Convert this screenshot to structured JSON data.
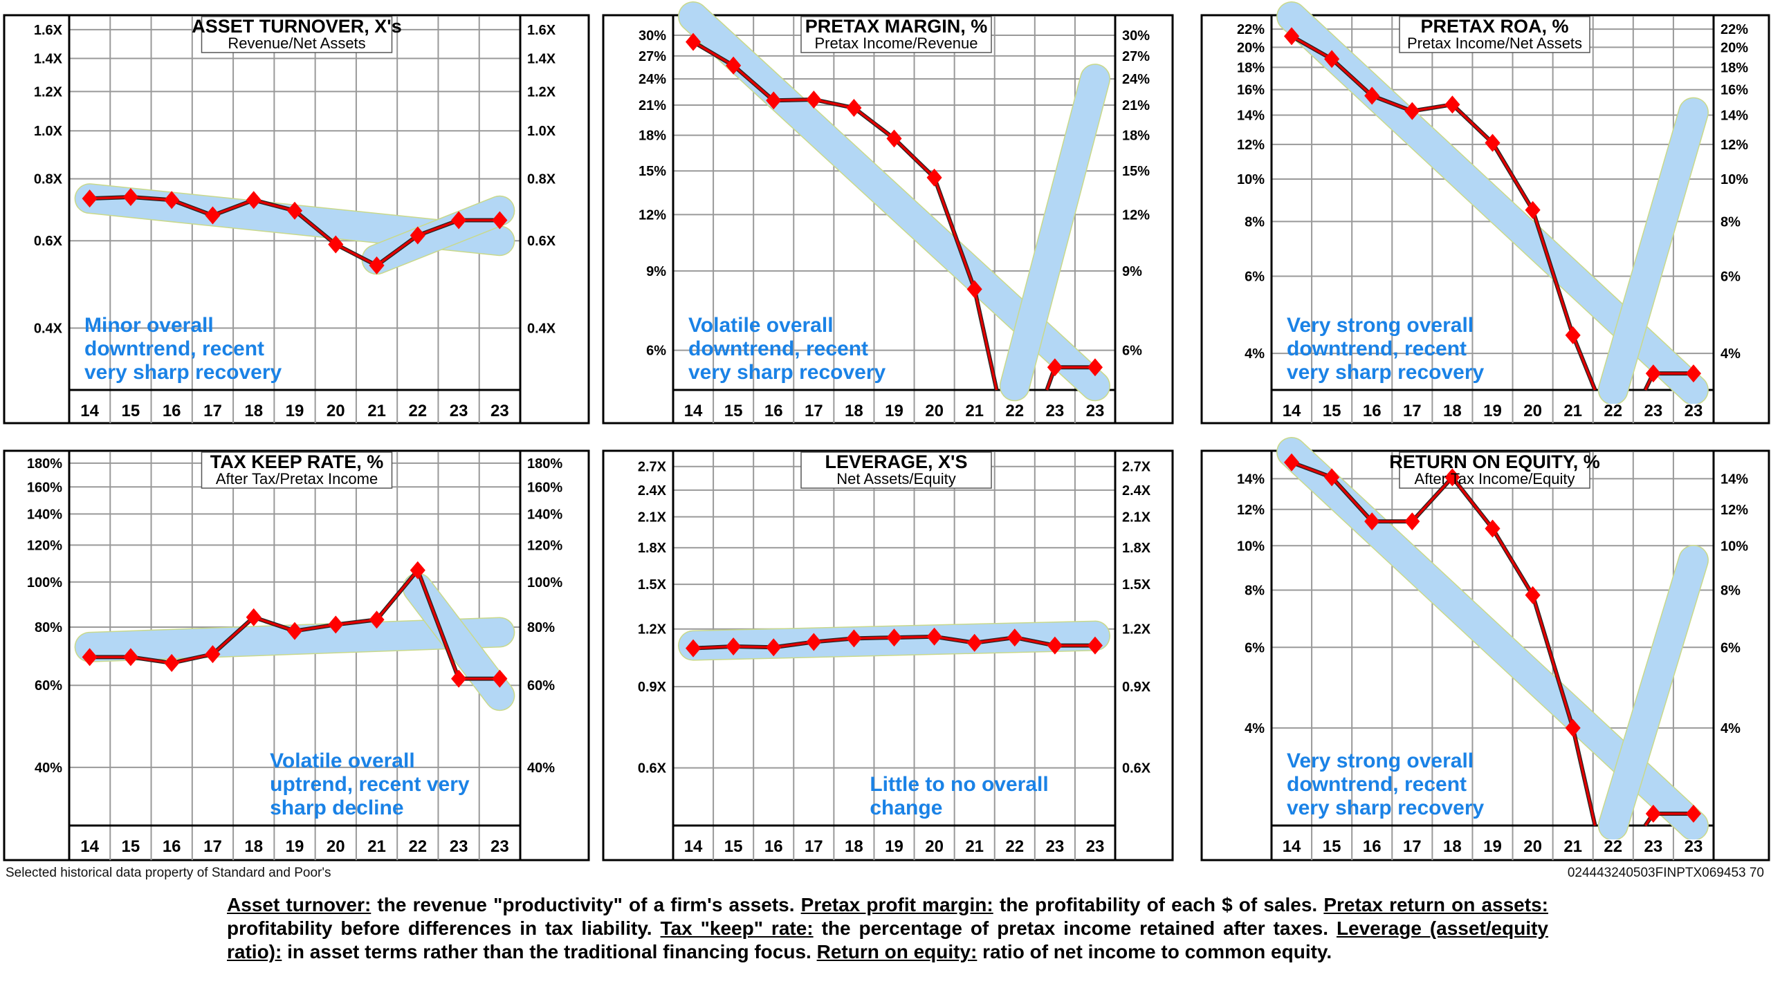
{
  "credit": "Selected historical data property of Standard and Poor's",
  "code": "024443240503FINPTX069453  70",
  "footer": [
    {
      "term": "Asset turnover:",
      "text": " the revenue \"productivity\" of a firm's assets. "
    },
    {
      "term": "Pretax profit margin:",
      "text": " the profitability of each $ of sales. "
    },
    {
      "term": "Pretax return on assets:",
      "text": " profitability before differences in tax liability. "
    },
    {
      "term": "Tax \"keep\" rate:",
      "text": " the percentage of pretax income retained after taxes. "
    },
    {
      "term": "Leverage (asset/equity ratio):",
      "text": " in asset terms rather than the traditional financing focus. "
    },
    {
      "term": "Return on equity:",
      "text": " ratio of net income to common equity."
    }
  ],
  "colors": {
    "line": "#e00000",
    "marker": "#ff0000",
    "trend": "#b3d7f5",
    "note": "#1a82e6",
    "grid": "#999999"
  },
  "chart_data": [
    {
      "type": "line",
      "title": "ASSET TURNOVER, X's",
      "subtitle": "Revenue/Net Assets",
      "scale": "log",
      "categories": [
        "14",
        "15",
        "16",
        "17",
        "18",
        "19",
        "20",
        "21",
        "22",
        "23",
        "23"
      ],
      "values": [
        0.73,
        0.735,
        0.725,
        0.675,
        0.725,
        0.69,
        0.59,
        0.535,
        0.615,
        0.66,
        0.66
      ],
      "yticks": [
        0.4,
        0.6,
        0.8,
        1.0,
        1.2,
        1.4,
        1.6
      ],
      "tick_labels": [
        "0.4X",
        "0.6X",
        "0.8X",
        "1.0X",
        "1.2X",
        "1.4X",
        "1.6X"
      ],
      "ylim": [
        0.3,
        1.7
      ],
      "trends": [
        {
          "from": [
            0,
            0.73
          ],
          "to": [
            10,
            0.6
          ]
        },
        {
          "from": [
            7,
            0.55
          ],
          "to": [
            10,
            0.69
          ]
        }
      ],
      "note": [
        "Minor overall",
        "downtrend, recent",
        "very sharp recovery"
      ],
      "note_pos": "bottom-left"
    },
    {
      "type": "line",
      "title": "PRETAX MARGIN, %",
      "subtitle": "Pretax Income/Revenue",
      "scale": "log",
      "categories": [
        "14",
        "15",
        "16",
        "17",
        "18",
        "19",
        "20",
        "21",
        "22",
        "23",
        "23"
      ],
      "values": [
        29.0,
        25.7,
        21.5,
        21.6,
        20.7,
        17.7,
        14.5,
        8.2,
        null,
        5.5,
        5.5
      ],
      "gap_segments": {
        "drop_after": 7,
        "rise_before": 9
      },
      "yticks": [
        6,
        9,
        12,
        15,
        18,
        21,
        24,
        27,
        30
      ],
      "tick_labels": [
        "6%",
        "9%",
        "12%",
        "15%",
        "18%",
        "21%",
        "24%",
        "27%",
        "30%"
      ],
      "ylim": [
        4.9,
        33
      ],
      "trends": [
        {
          "from": [
            0,
            33
          ],
          "to": [
            10,
            5.0
          ]
        },
        {
          "from": [
            8,
            5.0
          ],
          "to": [
            10,
            24
          ]
        }
      ],
      "note": [
        "Volatile overall",
        "downtrend, recent",
        "very sharp recovery"
      ],
      "note_pos": "bottom-left"
    },
    {
      "type": "line",
      "title": "PRETAX ROA, %",
      "subtitle": "Pretax Income/Net Assets",
      "scale": "log",
      "categories": [
        "14",
        "15",
        "16",
        "17",
        "18",
        "19",
        "20",
        "21",
        "22",
        "23",
        "23"
      ],
      "values": [
        21.2,
        18.8,
        15.5,
        14.3,
        14.8,
        12.1,
        8.5,
        4.4,
        null,
        3.6,
        3.6
      ],
      "gap_segments": {
        "drop_after": 7,
        "rise_before": 9
      },
      "yticks": [
        4,
        6,
        8,
        10,
        12,
        14,
        16,
        18,
        20,
        22
      ],
      "tick_labels": [
        "4%",
        "6%",
        "8%",
        "10%",
        "12%",
        "14%",
        "16%",
        "18%",
        "20%",
        "22%"
      ],
      "ylim": [
        3.3,
        23.5
      ],
      "trends": [
        {
          "from": [
            0,
            23.5
          ],
          "to": [
            10,
            3.3
          ]
        },
        {
          "from": [
            8,
            3.3
          ],
          "to": [
            10,
            14.2
          ]
        }
      ],
      "note": [
        "Very strong overall",
        "downtrend, recent",
        "very sharp recovery"
      ],
      "note_pos": "bottom-left"
    },
    {
      "type": "line",
      "title": "TAX KEEP RATE, %",
      "subtitle": "After Tax/Pretax Income",
      "scale": "log",
      "categories": [
        "14",
        "15",
        "16",
        "17",
        "18",
        "19",
        "20",
        "21",
        "22",
        "23",
        "23"
      ],
      "values": [
        69,
        69,
        67,
        70,
        84,
        78.5,
        81,
        83,
        106,
        62,
        62
      ],
      "yticks": [
        40,
        60,
        80,
        100,
        120,
        140,
        160,
        180
      ],
      "tick_labels": [
        "40%",
        "60%",
        "80%",
        "100%",
        "120%",
        "140%",
        "160%",
        "180%"
      ],
      "ylim": [
        30,
        190
      ],
      "trends": [
        {
          "from": [
            0,
            72.5
          ],
          "to": [
            10,
            78
          ]
        },
        {
          "from": [
            8,
            97
          ],
          "to": [
            10,
            57
          ]
        }
      ],
      "note": [
        "Volatile overall",
        "uptrend, recent very",
        "sharp decline"
      ],
      "note_pos": "bottom-right"
    },
    {
      "type": "line",
      "title": "LEVERAGE, X'S",
      "subtitle": "Net Assets/Equity",
      "scale": "log",
      "categories": [
        "14",
        "15",
        "16",
        "17",
        "18",
        "19",
        "20",
        "21",
        "22",
        "23",
        "23"
      ],
      "values": [
        1.09,
        1.1,
        1.095,
        1.125,
        1.145,
        1.15,
        1.155,
        1.12,
        1.15,
        1.105,
        1.105
      ],
      "yticks": [
        0.6,
        0.9,
        1.2,
        1.5,
        1.8,
        2.1,
        2.4,
        2.7
      ],
      "tick_labels": [
        "0.6X",
        "0.9X",
        "1.2X",
        "1.5X",
        "1.8X",
        "2.1X",
        "2.4X",
        "2.7X"
      ],
      "ylim": [
        0.45,
        2.9
      ],
      "trends": [
        {
          "from": [
            0,
            1.105
          ],
          "to": [
            10,
            1.16
          ]
        }
      ],
      "note": [
        "Little to no overall",
        "change"
      ],
      "note_pos": "bottom-right"
    },
    {
      "type": "line",
      "title": "RETURN ON EQUITY, %",
      "subtitle": "After Tax Income/Equity",
      "scale": "log",
      "categories": [
        "14",
        "15",
        "16",
        "17",
        "18",
        "19",
        "20",
        "21",
        "22",
        "23",
        "23"
      ],
      "values": [
        15.2,
        14.1,
        11.3,
        11.3,
        14.1,
        10.9,
        7.8,
        4.0,
        null,
        2.6,
        2.6
      ],
      "gap_segments": {
        "drop_after": 7,
        "rise_before": 9
      },
      "yticks": [
        4,
        6,
        8,
        10,
        12,
        14
      ],
      "tick_labels": [
        "4%",
        "6%",
        "8%",
        "10%",
        "12%",
        "14%"
      ],
      "ylim": [
        2.45,
        16
      ],
      "trends": [
        {
          "from": [
            0,
            16
          ],
          "to": [
            10,
            2.45
          ]
        },
        {
          "from": [
            8,
            2.45
          ],
          "to": [
            10,
            9.3
          ]
        }
      ],
      "note": [
        "Very strong overall",
        "downtrend, recent",
        "very sharp recovery"
      ],
      "note_pos": "bottom-left"
    }
  ]
}
